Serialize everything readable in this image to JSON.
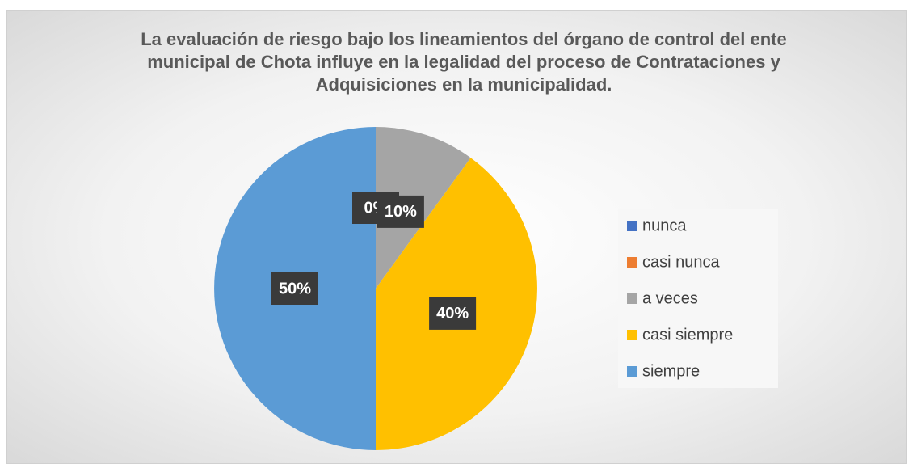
{
  "chart_data": {
    "type": "pie",
    "title": "La evaluación de riesgo bajo los lineamientos del órgano de control del ente municipal de Chota influye en la legalidad del proceso de Contrataciones y Adquisiciones en la municipalidad.",
    "categories": [
      "nunca",
      "casi nunca",
      "a veces",
      "casi siempre",
      "siempre"
    ],
    "values": [
      0,
      0,
      10,
      40,
      50
    ],
    "value_labels": [
      "0%",
      "0%",
      "10%",
      "40%",
      "50%"
    ],
    "colors": [
      "#4472c4",
      "#ed7d31",
      "#a5a5a5",
      "#ffc000",
      "#5b9bd5"
    ],
    "legend": "right"
  }
}
